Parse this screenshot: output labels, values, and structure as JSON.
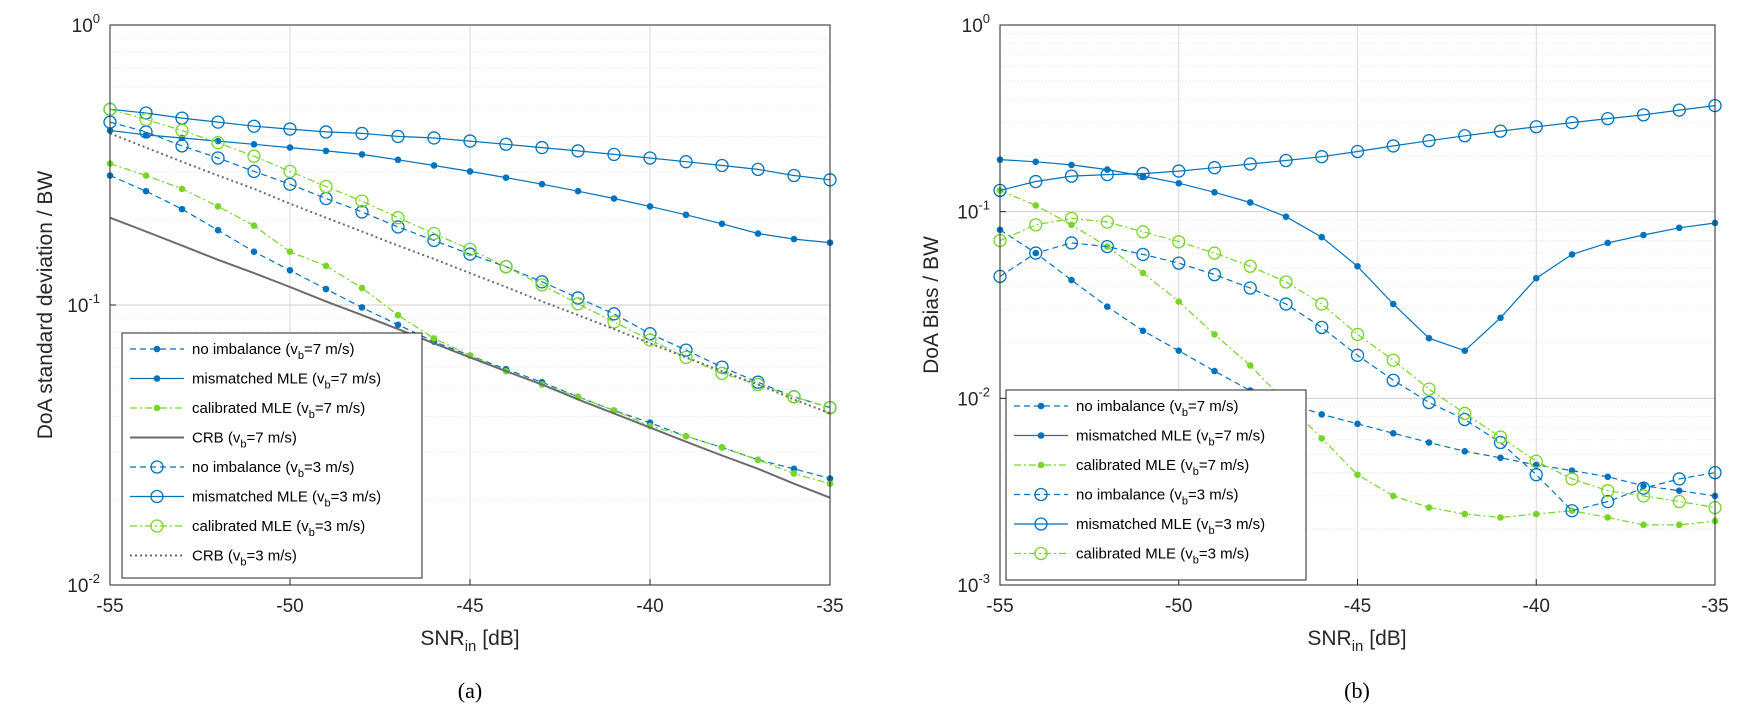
{
  "colors": {
    "blue": "#0072BD",
    "green": "#77D42A",
    "gray": "#6b6b6b",
    "grid": "#d9d9d9",
    "axis": "#262626"
  },
  "chart_data": [
    {
      "type": "line",
      "caption": "(a)",
      "xlabel": "SNR",
      "xlabel_sub": "in",
      "xlabel_unit": "[dB]",
      "ylabel": "DoA standard deviation / BW",
      "yscale": "log",
      "xlim": [
        -55,
        -35
      ],
      "ylim": [
        0.01,
        1
      ],
      "grid": true,
      "legend_position": "bottom-left",
      "xticks": [
        "-55",
        "-50",
        "-45",
        "-40",
        "-35"
      ],
      "yticks": [
        {
          "base": "10",
          "exp": "-2",
          "value": 0.01
        },
        {
          "base": "10",
          "exp": "-1",
          "value": 0.1
        },
        {
          "base": "10",
          "exp": "0",
          "value": 1
        }
      ],
      "x": [
        -55,
        -54,
        -53,
        -52,
        -51,
        -50,
        -49,
        -48,
        -47,
        -46,
        -45,
        -44,
        -43,
        -42,
        -41,
        -40,
        -39,
        -38,
        -37,
        -36,
        -35
      ],
      "series": [
        {
          "name": "no imbalance (v",
          "sub": "b",
          "suffix": "=7 m/s)",
          "color": "blue",
          "style": "dashed",
          "marker": "dot",
          "values": [
            0.29,
            0.255,
            0.22,
            0.185,
            0.155,
            0.133,
            0.114,
            0.098,
            0.085,
            0.074,
            0.066,
            0.059,
            0.053,
            0.047,
            0.042,
            0.038,
            0.034,
            0.031,
            0.028,
            0.026,
            0.024
          ]
        },
        {
          "name": "mismatched MLE (v",
          "sub": "b",
          "suffix": "=7 m/s)",
          "color": "blue",
          "style": "solid",
          "marker": "dot",
          "values": [
            0.42,
            0.405,
            0.395,
            0.385,
            0.375,
            0.365,
            0.355,
            0.345,
            0.33,
            0.315,
            0.3,
            0.285,
            0.27,
            0.255,
            0.24,
            0.225,
            0.21,
            0.195,
            0.18,
            0.172,
            0.167
          ]
        },
        {
          "name": "calibrated MLE (v",
          "sub": "b",
          "suffix": "=7 m/s)",
          "color": "green",
          "style": "dashdot",
          "marker": "dot",
          "values": [
            0.32,
            0.29,
            0.26,
            0.225,
            0.192,
            0.155,
            0.138,
            0.115,
            0.092,
            0.076,
            0.066,
            0.058,
            0.052,
            0.047,
            0.042,
            0.037,
            0.034,
            0.031,
            0.028,
            0.025,
            0.023
          ]
        },
        {
          "name": "CRB (v",
          "sub": "b",
          "suffix": "=7 m/s)",
          "color": "gray",
          "style": "solid",
          "marker": "none",
          "values": [
            0.205,
            0.183,
            0.163,
            0.145,
            0.13,
            0.116,
            0.103,
            0.092,
            0.082,
            0.073,
            0.065,
            0.058,
            0.052,
            0.046,
            0.041,
            0.0365,
            0.0325,
            0.029,
            0.026,
            0.023,
            0.0205
          ]
        },
        {
          "name": "no imbalance (v",
          "sub": "b",
          "suffix": "=3 m/s)",
          "color": "blue",
          "style": "dashed",
          "marker": "circle",
          "values": [
            0.45,
            0.415,
            0.37,
            0.335,
            0.3,
            0.27,
            0.24,
            0.215,
            0.19,
            0.17,
            0.152,
            0.137,
            0.121,
            0.106,
            0.093,
            0.079,
            0.069,
            0.06,
            0.053,
            0.047,
            0.043
          ]
        },
        {
          "name": "mismatched MLE (v",
          "sub": "b",
          "suffix": "=3 m/s)",
          "color": "blue",
          "style": "solid",
          "marker": "circle",
          "values": [
            0.5,
            0.485,
            0.465,
            0.45,
            0.435,
            0.425,
            0.415,
            0.41,
            0.4,
            0.395,
            0.385,
            0.375,
            0.365,
            0.355,
            0.345,
            0.335,
            0.325,
            0.315,
            0.305,
            0.29,
            0.28
          ]
        },
        {
          "name": "calibrated MLE (v",
          "sub": "b",
          "suffix": "=3 m/s)",
          "color": "green",
          "style": "dashdot",
          "marker": "circle",
          "values": [
            0.5,
            0.46,
            0.42,
            0.38,
            0.34,
            0.3,
            0.265,
            0.235,
            0.205,
            0.18,
            0.158,
            0.137,
            0.118,
            0.101,
            0.087,
            0.075,
            0.065,
            0.057,
            0.052,
            0.047,
            0.043
          ]
        },
        {
          "name": "CRB (v",
          "sub": "b",
          "suffix": "=3 m/s)",
          "color": "gray",
          "style": "dotted",
          "marker": "none",
          "values": [
            0.41,
            0.365,
            0.325,
            0.29,
            0.26,
            0.23,
            0.205,
            0.183,
            0.163,
            0.146,
            0.13,
            0.116,
            0.103,
            0.092,
            0.082,
            0.073,
            0.065,
            0.058,
            0.052,
            0.046,
            0.041
          ]
        }
      ]
    },
    {
      "type": "line",
      "caption": "(b)",
      "xlabel": "SNR",
      "xlabel_sub": "in",
      "xlabel_unit": "[dB]",
      "ylabel": "DoA Bias / BW",
      "yscale": "log",
      "xlim": [
        -55,
        -35
      ],
      "ylim": [
        0.001,
        1
      ],
      "grid": true,
      "legend_position": "bottom-left",
      "xticks": [
        "-55",
        "-50",
        "-45",
        "-40",
        "-35"
      ],
      "yticks": [
        {
          "base": "10",
          "exp": "-3",
          "value": 0.001
        },
        {
          "base": "10",
          "exp": "-2",
          "value": 0.01
        },
        {
          "base": "10",
          "exp": "-1",
          "value": 0.1
        },
        {
          "base": "10",
          "exp": "0",
          "value": 1
        }
      ],
      "x": [
        -55,
        -54,
        -53,
        -52,
        -51,
        -50,
        -49,
        -48,
        -47,
        -46,
        -45,
        -44,
        -43,
        -42,
        -41,
        -40,
        -39,
        -38,
        -37,
        -36,
        -35
      ],
      "series": [
        {
          "name": "no imbalance (v",
          "sub": "b",
          "suffix": "=7 m/s)",
          "color": "blue",
          "style": "dashed",
          "marker": "dot",
          "values": [
            0.08,
            0.06,
            0.043,
            0.031,
            0.023,
            0.018,
            0.014,
            0.011,
            0.0095,
            0.0082,
            0.0073,
            0.0065,
            0.0058,
            0.0052,
            0.0048,
            0.0044,
            0.0041,
            0.0038,
            0.0034,
            0.0032,
            0.003
          ]
        },
        {
          "name": "mismatched MLE (v",
          "sub": "b",
          "suffix": "=7 m/s)",
          "color": "blue",
          "style": "solid",
          "marker": "dot",
          "values": [
            0.19,
            0.185,
            0.178,
            0.168,
            0.155,
            0.142,
            0.127,
            0.112,
            0.094,
            0.073,
            0.051,
            0.032,
            0.021,
            0.018,
            0.027,
            0.044,
            0.059,
            0.068,
            0.075,
            0.082,
            0.087
          ]
        },
        {
          "name": "calibrated MLE (v",
          "sub": "b",
          "suffix": "=7 m/s)",
          "color": "green",
          "style": "dashdot",
          "marker": "dot",
          "values": [
            0.13,
            0.108,
            0.085,
            0.065,
            0.047,
            0.033,
            0.022,
            0.015,
            0.0095,
            0.0061,
            0.0039,
            0.003,
            0.0026,
            0.0024,
            0.0023,
            0.0024,
            0.0025,
            0.0023,
            0.0021,
            0.0021,
            0.0022
          ]
        },
        {
          "name": "no imbalance (v",
          "sub": "b",
          "suffix": "=3 m/s)",
          "color": "blue",
          "style": "dashed",
          "marker": "circle",
          "values": [
            0.045,
            0.06,
            0.068,
            0.065,
            0.059,
            0.053,
            0.046,
            0.039,
            0.032,
            0.024,
            0.017,
            0.0125,
            0.0095,
            0.0077,
            0.0058,
            0.0039,
            0.0025,
            0.0028,
            0.0033,
            0.0037,
            0.004
          ]
        },
        {
          "name": "mismatched MLE (v",
          "sub": "b",
          "suffix": "=3 m/s)",
          "color": "blue",
          "style": "solid",
          "marker": "circle",
          "values": [
            0.13,
            0.145,
            0.155,
            0.158,
            0.16,
            0.165,
            0.172,
            0.18,
            0.188,
            0.197,
            0.21,
            0.225,
            0.24,
            0.255,
            0.27,
            0.285,
            0.3,
            0.315,
            0.33,
            0.35,
            0.37
          ]
        },
        {
          "name": "calibrated MLE (v",
          "sub": "b",
          "suffix": "=3 m/s)",
          "color": "green",
          "style": "dashdot",
          "marker": "circle",
          "values": [
            0.07,
            0.085,
            0.092,
            0.088,
            0.078,
            0.069,
            0.06,
            0.051,
            0.042,
            0.032,
            0.022,
            0.016,
            0.0112,
            0.0083,
            0.0062,
            0.0046,
            0.0037,
            0.0032,
            0.003,
            0.0028,
            0.0026
          ]
        }
      ]
    }
  ]
}
